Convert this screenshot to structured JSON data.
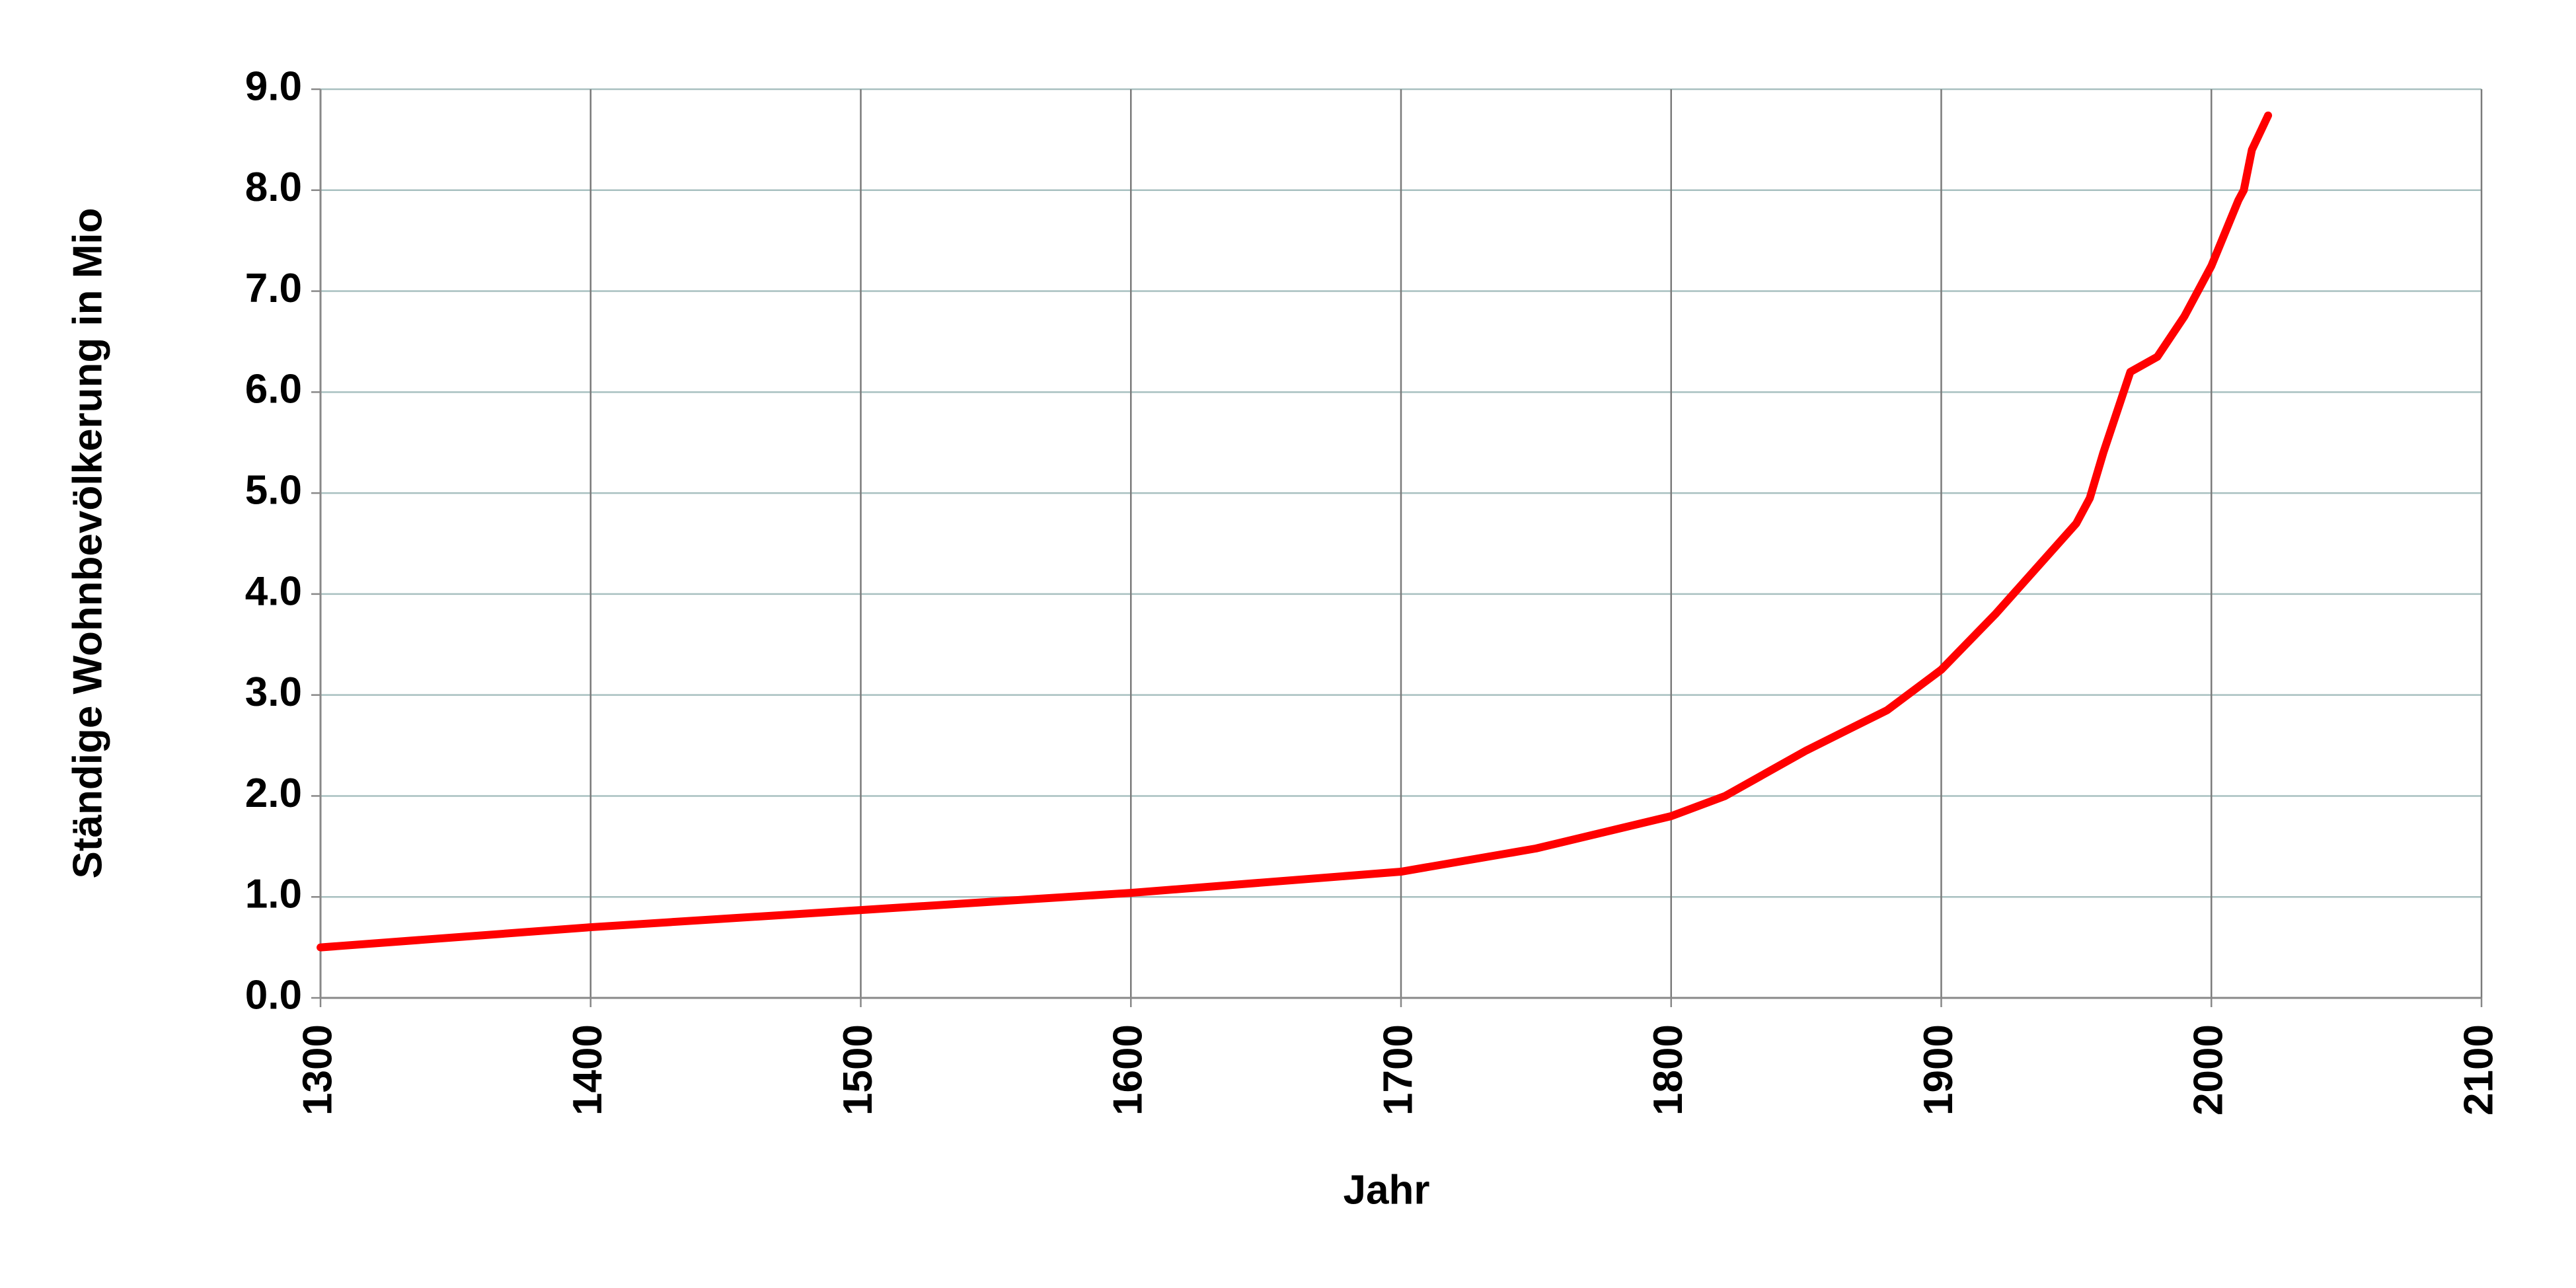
{
  "chart_data": {
    "type": "line",
    "x_label": "Jahr",
    "y_label": "Ständige Wohnbevölkerung in Mio",
    "x": [
      1300,
      1400,
      1500,
      1600,
      1700,
      1750,
      1800,
      1820,
      1850,
      1880,
      1900,
      1920,
      1950,
      1955,
      1960,
      1970,
      1980,
      1990,
      2000,
      2010,
      2012,
      2015,
      2021
    ],
    "series": [
      {
        "name": "Ständige Wohnbevölkerung",
        "color": "#ff0000",
        "values": [
          0.5,
          0.7,
          0.87,
          1.04,
          1.25,
          1.48,
          1.8,
          2.0,
          2.45,
          2.85,
          3.25,
          3.8,
          4.7,
          4.95,
          5.4,
          6.2,
          6.35,
          6.75,
          7.25,
          7.9,
          8.0,
          8.4,
          8.74
        ]
      }
    ],
    "xlim": [
      1300,
      2100
    ],
    "xticks": [
      1300,
      1400,
      1500,
      1600,
      1700,
      1800,
      1900,
      2000,
      2100
    ],
    "ylim": [
      0,
      9
    ],
    "yticks": [
      {
        "value": 0,
        "label": "0.0"
      },
      {
        "value": 1,
        "label": "1.0"
      },
      {
        "value": 2,
        "label": "2.0"
      },
      {
        "value": 3,
        "label": "3.0"
      },
      {
        "value": 4,
        "label": "4.0"
      },
      {
        "value": 5,
        "label": "5.0"
      },
      {
        "value": 6,
        "label": "6.0"
      },
      {
        "value": 7,
        "label": "7.0"
      },
      {
        "value": 8,
        "label": "8.0"
      },
      {
        "value": 9,
        "label": "9.0"
      }
    ],
    "grid": true
  }
}
